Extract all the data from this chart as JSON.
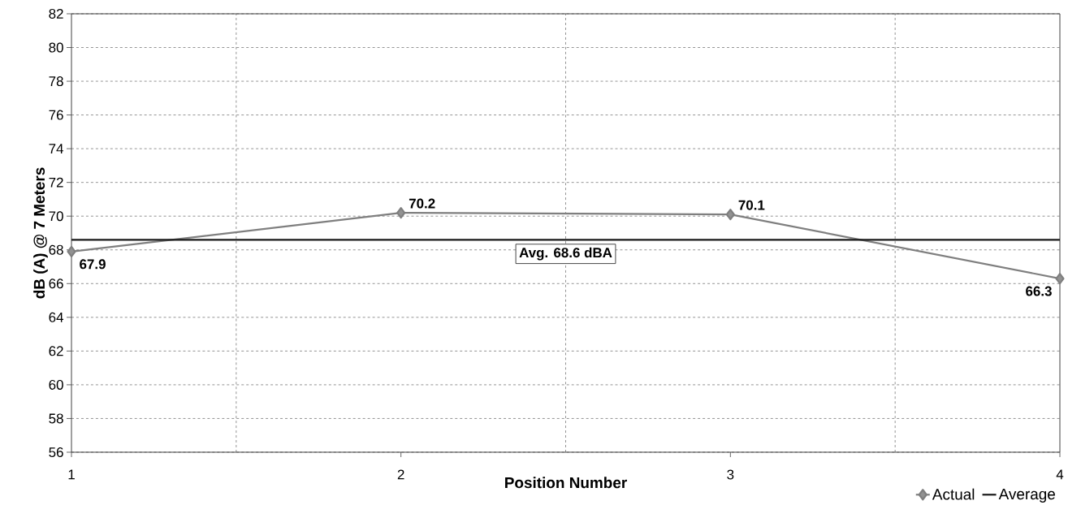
{
  "chart_data": {
    "type": "line",
    "xlabel": "Position Number",
    "ylabel": "dB (A) @ 7 Meters",
    "x": [
      1,
      2,
      3,
      4
    ],
    "series": [
      {
        "name": "Actual",
        "color": "#7f7f7f",
        "values": [
          67.9,
          70.2,
          70.1,
          66.3
        ],
        "marker": "diamond",
        "value_labels": [
          "67.9",
          "70.2",
          "70.1",
          "66.3"
        ]
      },
      {
        "name": "Average",
        "color": "#1a1a1a",
        "x": [
          1,
          4
        ],
        "values": [
          68.6,
          68.6
        ],
        "marker": "none"
      }
    ],
    "annotations": [
      {
        "text": "Avg. 68.6 dBA",
        "x": 2.5,
        "y": 68.6
      }
    ],
    "xlim": [
      1,
      4
    ],
    "xticks": [
      1,
      2,
      3,
      4
    ],
    "ylim": [
      56,
      82
    ],
    "yticks": [
      56,
      58,
      60,
      62,
      64,
      66,
      68,
      70,
      72,
      74,
      76,
      78,
      80,
      82
    ],
    "grid": true,
    "legend": "bottom right",
    "line_style": "solid"
  }
}
